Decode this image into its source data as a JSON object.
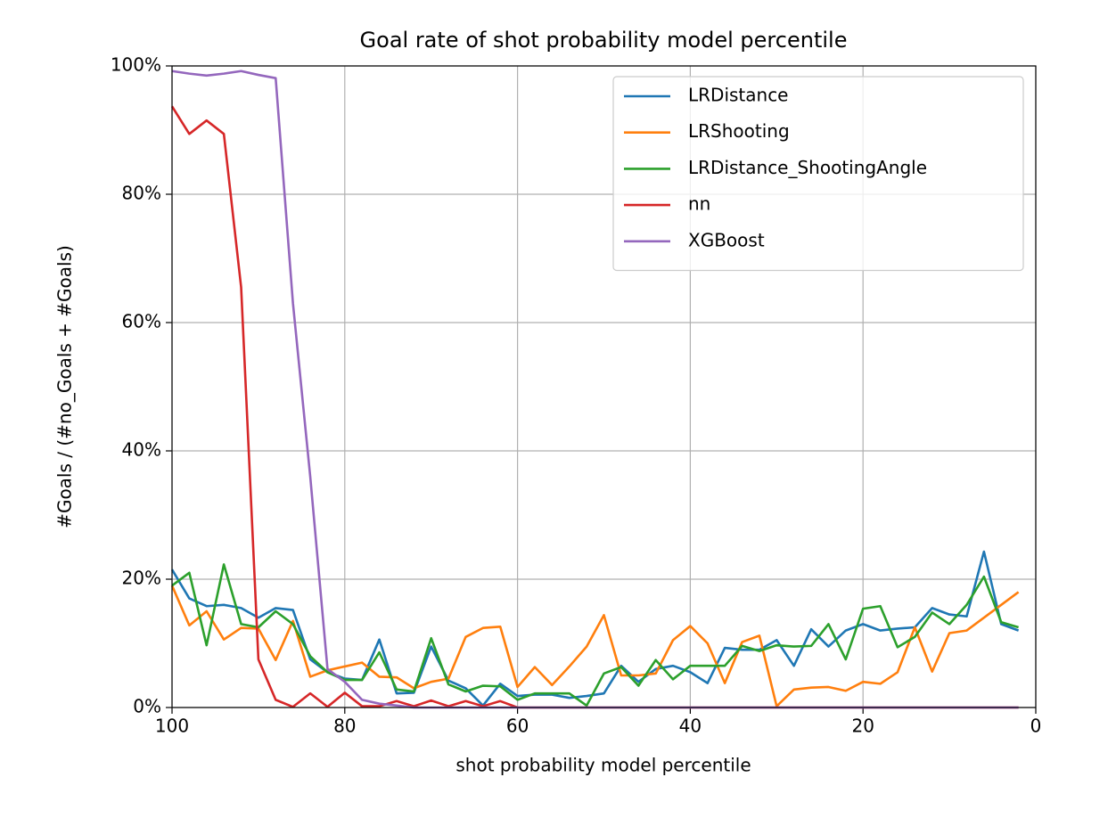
{
  "chart_data": {
    "type": "line",
    "title": "Goal rate of shot probability model percentile",
    "x_label": "shot probability model percentile",
    "y_label": "#Goals / (#no_Goals + #Goals)",
    "x": [
      100,
      98,
      96,
      94,
      92,
      90,
      88,
      86,
      84,
      82,
      80,
      78,
      76,
      74,
      72,
      70,
      68,
      66,
      64,
      62,
      60,
      58,
      56,
      54,
      52,
      50,
      48,
      46,
      44,
      42,
      40,
      38,
      36,
      34,
      32,
      30,
      28,
      26,
      24,
      22,
      20,
      18,
      16,
      14,
      12,
      10,
      8,
      6,
      4,
      2
    ],
    "series": [
      {
        "name": "LRDistance",
        "color": "#1f77b4",
        "values": [
          21.5,
          17,
          15.8,
          16,
          15.5,
          14,
          15.5,
          15.2,
          7.5,
          5.5,
          4.5,
          4.3,
          10.6,
          2.2,
          2.3,
          9.5,
          4.2,
          3,
          0.3,
          3.7,
          1.8,
          2,
          2,
          1.5,
          1.8,
          2.2,
          6.5,
          4,
          6,
          6.5,
          5.5,
          3.8,
          9.3,
          9,
          9,
          10.5,
          6.5,
          12.2,
          9.5,
          12,
          13,
          12,
          12.3,
          12.5,
          15.5,
          14.5,
          14.2,
          24.3,
          13,
          12
        ]
      },
      {
        "name": "LRShooting",
        "color": "#ff7f0e",
        "values": [
          19,
          12.8,
          15,
          10.6,
          12.4,
          12.3,
          7.4,
          13.5,
          4.8,
          5.8,
          6.4,
          7,
          4.8,
          4.7,
          3,
          4,
          4.5,
          11,
          12.4,
          12.6,
          3.2,
          6.3,
          3.5,
          6.4,
          9.5,
          14.4,
          5,
          5,
          5.3,
          10.5,
          12.7,
          10,
          3.8,
          10.2,
          11.2,
          0.2,
          2.8,
          3.1,
          3.2,
          2.6,
          4,
          3.7,
          5.5,
          12.5,
          5.6,
          11.6,
          12,
          14,
          16,
          18
        ]
      },
      {
        "name": "LRDistance_ShootingAngle",
        "color": "#2ca02c",
        "values": [
          19,
          21,
          9.7,
          22.3,
          13,
          12.5,
          15,
          13,
          8,
          5.5,
          4.3,
          4.3,
          8.6,
          2.8,
          2.5,
          10.8,
          3.6,
          2.5,
          3.4,
          3.3,
          1.2,
          2.2,
          2.2,
          2.2,
          0.3,
          5.3,
          6.3,
          3.4,
          7.4,
          4.4,
          6.5,
          6.5,
          6.5,
          9.6,
          8.8,
          9.7,
          9.5,
          9.6,
          13,
          7.5,
          15.4,
          15.8,
          9.4,
          11,
          14.8,
          13,
          16,
          20.4,
          13.3,
          12.5
        ]
      },
      {
        "name": "nn",
        "color": "#d62728",
        "values": [
          93.7,
          89.4,
          91.5,
          89.4,
          65.5,
          7.5,
          1.2,
          0.1,
          2.2,
          0.1,
          2.3,
          0.2,
          0.2,
          1,
          0.2,
          1.1,
          0.2,
          1,
          0.2,
          1,
          0,
          0,
          0,
          0,
          0,
          0,
          0,
          0,
          0,
          0,
          0,
          0,
          0,
          0,
          0,
          0,
          0,
          0,
          0,
          0,
          0,
          0,
          0,
          0,
          0,
          0,
          0,
          0,
          0,
          0
        ]
      },
      {
        "name": "XGBoost",
        "color": "#9467bd",
        "values": [
          99.2,
          98.8,
          98.5,
          98.8,
          99.2,
          98.6,
          98.1,
          63,
          36,
          6,
          4,
          1.2,
          0.6,
          0.3,
          0,
          0,
          0,
          0,
          0,
          0,
          0,
          0,
          0,
          0,
          0,
          0,
          0,
          0,
          0,
          0,
          0,
          0,
          0,
          0,
          0,
          0,
          0,
          0,
          0,
          0,
          0,
          0,
          0,
          0,
          0,
          0,
          0,
          0,
          0,
          0
        ]
      }
    ],
    "xlim": [
      100,
      0
    ],
    "xticks": [
      100,
      80,
      60,
      40,
      20,
      0
    ],
    "ylim": [
      0,
      100
    ],
    "yticks": [
      {
        "value": 0,
        "label": "0%"
      },
      {
        "value": 20,
        "label": "20%"
      },
      {
        "value": 40,
        "label": "40%"
      },
      {
        "value": 60,
        "label": "60%"
      },
      {
        "value": 80,
        "label": "80%"
      },
      {
        "value": 100,
        "label": "100%"
      }
    ],
    "grid": true,
    "legend": "upper right"
  }
}
